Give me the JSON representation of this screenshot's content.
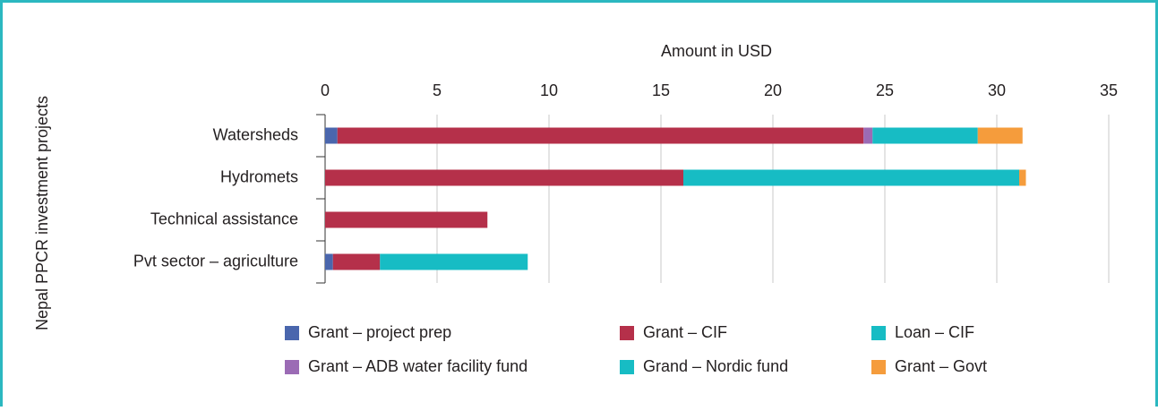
{
  "chart_data": {
    "type": "stacked-barh",
    "xlabel": "Amount in USD",
    "ylabel": "Nepal PPCR investment projects",
    "categories": [
      "Watersheds",
      "Hydromets",
      "Technical assistance",
      "Pvt sector – agriculture"
    ],
    "xlim": [
      0,
      35
    ],
    "xticks": [
      0,
      5,
      10,
      15,
      20,
      25,
      30,
      35
    ],
    "grid": true,
    "series": [
      {
        "name": "Grant – project prep",
        "color": "#4a66ad",
        "values": [
          0.55,
          0,
          0,
          0.35
        ]
      },
      {
        "name": "Grant – CIF",
        "color": "#b5304a",
        "values": [
          23.5,
          16.0,
          7.25,
          2.1
        ]
      },
      {
        "name": "Loan – CIF",
        "color": "#17bcc4",
        "values": [
          0,
          15.0,
          0,
          6.6
        ]
      },
      {
        "name": "Grant – ADB water facility fund",
        "color": "#9b6bb5",
        "values": [
          0.4,
          0,
          0,
          0
        ]
      },
      {
        "name": "Grand – Nordic fund",
        "color": "#17bcc4",
        "values": [
          4.7,
          0,
          0,
          0
        ]
      },
      {
        "name": "Grant – Govt",
        "color": "#f59c3c",
        "values": [
          2.0,
          0.3,
          0,
          0
        ]
      }
    ],
    "legend_order": [
      0,
      1,
      2,
      3,
      4,
      5
    ]
  }
}
